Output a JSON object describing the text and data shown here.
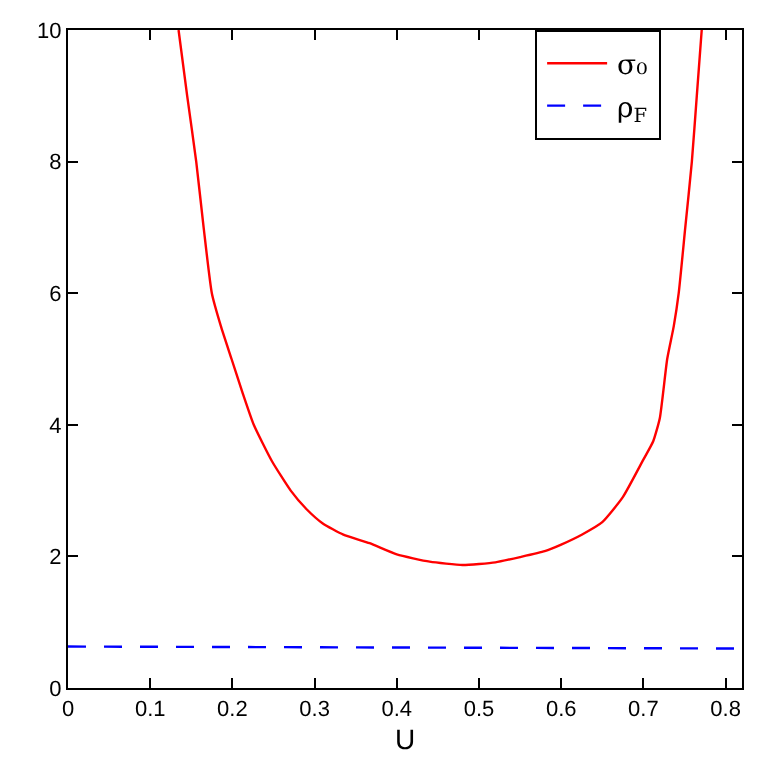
{
  "chart_data": {
    "type": "line",
    "xlabel": "U",
    "xlim": [
      0,
      0.82
    ],
    "ylim": [
      0,
      10
    ],
    "xticks": [
      0,
      0.1,
      0.2,
      0.3,
      0.4,
      0.5,
      0.6,
      0.7,
      0.8
    ],
    "yticks": [
      0,
      2,
      4,
      6,
      8,
      10
    ],
    "legend": "top right",
    "marker": "none",
    "series": [
      {
        "name": "σ₀",
        "color": "#ff0000",
        "line_style": "solid",
        "x": [
          0.1345,
          0.145,
          0.156,
          0.165,
          0.175,
          0.186,
          0.199,
          0.212,
          0.226,
          0.248,
          0.271,
          0.29,
          0.31,
          0.335,
          0.367,
          0.4,
          0.44,
          0.48,
          0.52,
          0.55,
          0.58,
          0.6,
          0.625,
          0.65,
          0.675,
          0.7,
          0.712,
          0.72,
          0.729,
          0.737,
          0.743,
          0.751,
          0.759,
          0.765,
          0.771
        ],
        "values": [
          10,
          9,
          8,
          7,
          6,
          5.5,
          5,
          4.5,
          4,
          3.45,
          3,
          2.72,
          2.5,
          2.33,
          2.2,
          2.03,
          1.92,
          1.87,
          1.91,
          1.99,
          2.08,
          2.18,
          2.33,
          2.52,
          2.9,
          3.47,
          3.75,
          4.1,
          5,
          5.5,
          6,
          7,
          8,
          9,
          10
        ]
      },
      {
        "name": "ρ$_{F}$",
        "color": "#0000ff",
        "line_style": "dashed",
        "x": [
          0,
          0.82
        ],
        "values": [
          0.63,
          0.6
        ]
      }
    ]
  }
}
